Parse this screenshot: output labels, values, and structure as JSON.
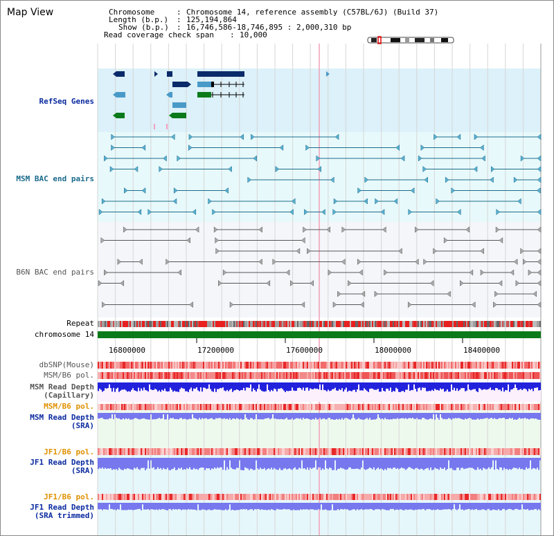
{
  "title": "Map View",
  "info": {
    "chromosome_label": "Chromosome",
    "chromosome_value": "Chromosome 14, reference assembly (C57BL/6J) (Build 37)",
    "length_label": "Length (b.p.)",
    "length_value": "125,194,864",
    "show_label": "Show (b.p.)",
    "show_value": "16,746,586-18,746,895 : 2,000,310 bp",
    "coverage_label": "Read coverage check span",
    "coverage_value": "10,000"
  },
  "tracks": {
    "refseq": "RefSeq Genes",
    "msm_bac": "MSM BAC end pairs",
    "b6n_bac": "B6N BAC end pairs",
    "repeat": "Repeat",
    "chromosome": "chromosome 14",
    "dbsnp": "dbSNP(Mouse)",
    "msm_b6_pol": "MSM/B6 pol.",
    "msm_depth_cap_1": "MSM Read Depth",
    "msm_depth_cap_2": "(Capillary)",
    "msm_b6_pol2": "MSM/B6 pol.",
    "msm_depth_sra_1": "MSM Read Depth",
    "msm_depth_sra_2": "(SRA)",
    "jf1_b6_pol": "JF1/B6 pol.",
    "jf1_depth_sra_1": "JF1 Read Depth",
    "jf1_depth_sra_2": "(SRA)",
    "jf1_b6_pol2": "JF1/B6 pol.",
    "jf1_depth_trim_1": "JF1 Read Depth",
    "jf1_depth_trim_2": "(SRA trimmed)"
  },
  "axis": {
    "ticks": [
      "16800000",
      "17200000",
      "17600000",
      "18000000",
      "18400000"
    ]
  },
  "colors": {
    "refseq_dark": "#0a2a6a",
    "refseq_light": "#4a9ac8",
    "refseq_green": "#0a7a1a",
    "msm_bac": "#1a6a8a",
    "b6n_bac": "#555555",
    "chromosome": "#0a7a1a",
    "depth_blue": "#2222dd",
    "depth_light": "#7777ee",
    "pol_red": "#e83030",
    "label_blue": "#0a2aa0",
    "label_orange": "#e09000"
  }
}
